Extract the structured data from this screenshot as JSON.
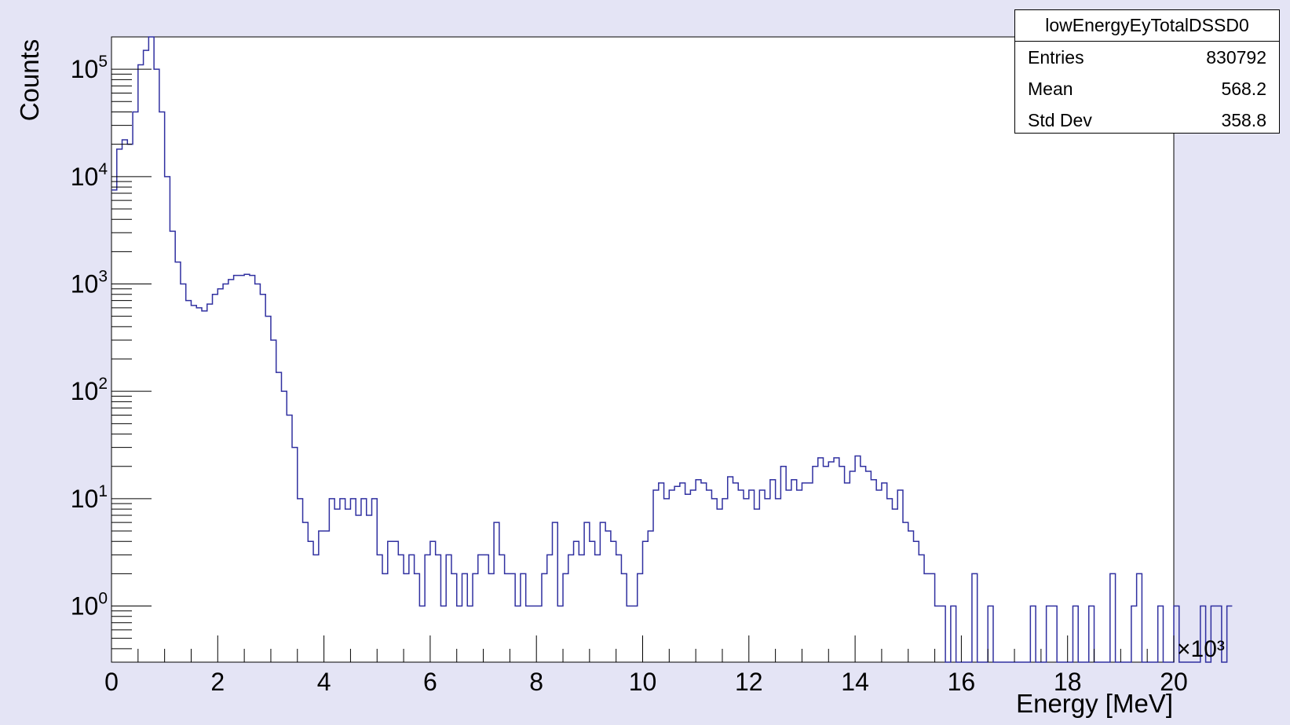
{
  "colors": {
    "background": "#e4e4f5",
    "frame": "#ffffff",
    "histogram_line": "#3030a0",
    "axis": "#000000"
  },
  "stats_box": {
    "title": "lowEnergyEyTotalDSSD0",
    "entries_label": "Entries",
    "entries_value": "830792",
    "mean_label": "Mean",
    "mean_value": "568.2",
    "stddev_label": "Std Dev",
    "stddev_value": "358.8"
  },
  "chart_data": {
    "type": "histogram",
    "title": "lowEnergyEyTotalDSSD0",
    "xlabel": "Energy [MeV]",
    "ylabel": "Counts",
    "x_multiplier_label": "×10³",
    "xlim": [
      0,
      20000
    ],
    "ylim": [
      0.3,
      200000
    ],
    "y_scale": "log",
    "grid": false,
    "x_tick_labels": [
      "0",
      "2",
      "4",
      "6",
      "8",
      "10",
      "12",
      "14",
      "16",
      "18",
      "20"
    ],
    "y_tick_labels": [
      {
        "base": "10",
        "exp": "0"
      },
      {
        "base": "10",
        "exp": "1"
      },
      {
        "base": "10",
        "exp": "2"
      },
      {
        "base": "10",
        "exp": "3"
      },
      {
        "base": "10",
        "exp": "4"
      },
      {
        "base": "10",
        "exp": "5"
      }
    ],
    "bin_width": 100,
    "x_start": 0,
    "values": [
      7500,
      18000,
      22000,
      20000,
      40000,
      110000,
      150000,
      200000,
      100000,
      40000,
      10000,
      3100,
      1600,
      1000,
      700,
      630,
      600,
      560,
      650,
      800,
      900,
      1000,
      1100,
      1200,
      1200,
      1230,
      1200,
      1000,
      800,
      500,
      300,
      150,
      100,
      60,
      30,
      10,
      6,
      4,
      3,
      5,
      5,
      10,
      8,
      10,
      8,
      10,
      7,
      10,
      7,
      10,
      3,
      2,
      4,
      4,
      3,
      2,
      3,
      2,
      1,
      3,
      4,
      3,
      1,
      3,
      2,
      1,
      2,
      1,
      2,
      3,
      3,
      2,
      6,
      3,
      2,
      2,
      1,
      2,
      1,
      1,
      1,
      2,
      3,
      6,
      1,
      2,
      3,
      4,
      3,
      6,
      4,
      3,
      6,
      5,
      4,
      3,
      2,
      1,
      1,
      2,
      4,
      5,
      12,
      14,
      10,
      12,
      13,
      14,
      11,
      12,
      15,
      14,
      12,
      10,
      8,
      10,
      16,
      14,
      12,
      10,
      12,
      8,
      12,
      10,
      15,
      10,
      20,
      12,
      15,
      12,
      14,
      14,
      20,
      24,
      20,
      22,
      24,
      20,
      14,
      18,
      25,
      20,
      18,
      15,
      12,
      14,
      10,
      8,
      12,
      6,
      5,
      4,
      3,
      2,
      2,
      1,
      1,
      0,
      1,
      0,
      0,
      0,
      2,
      0,
      0,
      1,
      0,
      0,
      0,
      0,
      0,
      0,
      0,
      1,
      0,
      0,
      1,
      1,
      0,
      0,
      0,
      1,
      0,
      0,
      1,
      0,
      0,
      0,
      2,
      0,
      0,
      0,
      1,
      2,
      0,
      0,
      0,
      1,
      0,
      0,
      1,
      0,
      0,
      0,
      0,
      1,
      0,
      1,
      1,
      0,
      1
    ]
  }
}
